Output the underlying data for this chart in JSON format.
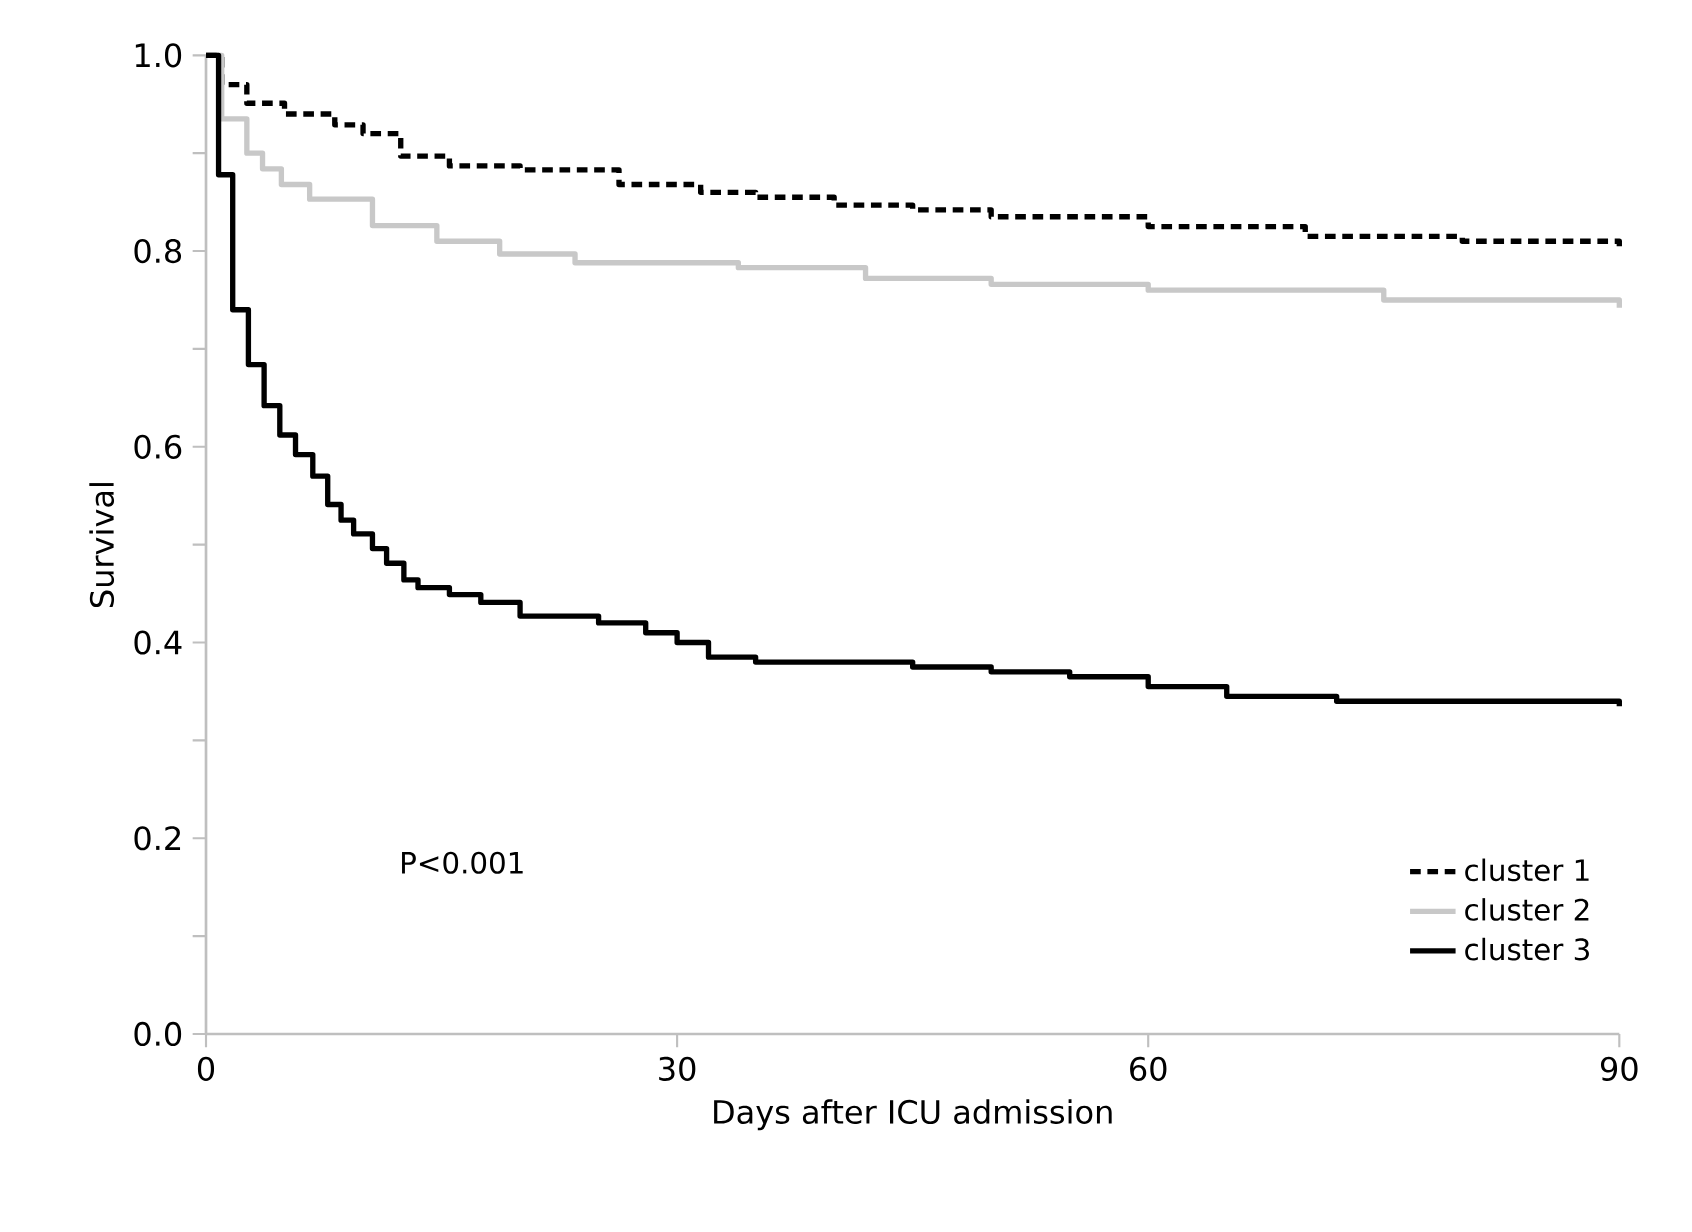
{
  "chart_data": {
    "type": "step",
    "xlabel": "Days after ICU admission",
    "ylabel": "Survival",
    "xlim": [
      0,
      90
    ],
    "ylim": [
      0,
      1
    ],
    "xticks": [
      0,
      30,
      60,
      90
    ],
    "yticks": [
      {
        "value": 0,
        "label": "0.0"
      },
      {
        "value": 0.1,
        "label": null
      },
      {
        "value": 0.2,
        "label": "0.2"
      },
      {
        "value": 0.3,
        "label": null
      },
      {
        "value": 0.4,
        "label": "0.4"
      },
      {
        "value": 0.5,
        "label": null
      },
      {
        "value": 0.6,
        "label": "0.6"
      },
      {
        "value": 0.7,
        "label": null
      },
      {
        "value": 0.8,
        "label": "0.8"
      },
      {
        "value": 0.9,
        "label": null
      },
      {
        "value": 1.0,
        "label": "1.0"
      }
    ],
    "grid": false,
    "legend": "bottom right",
    "marker": "none",
    "annotations": [
      "P<0.001"
    ],
    "series": [
      {
        "name": "cluster 1",
        "color": "#000000",
        "line_style": "dashed",
        "x": [
          0,
          1,
          2.6,
          5,
          8.2,
          10,
          12.4,
          15.5,
          20,
          26.3,
          31.5,
          35,
          40,
          45,
          50,
          60,
          70,
          80,
          90
        ],
        "values": [
          1.0,
          0.97,
          0.951,
          0.94,
          0.929,
          0.92,
          0.897,
          0.887,
          0.883,
          0.868,
          0.86,
          0.855,
          0.847,
          0.842,
          0.835,
          0.825,
          0.815,
          0.81,
          0.805
        ]
      },
      {
        "name": "cluster 2",
        "color": "#c8c8c8",
        "line_style": "solid",
        "x": [
          0,
          1,
          2.6,
          3.6,
          4.8,
          6.6,
          10.6,
          14.7,
          18.7,
          23.5,
          33.9,
          42,
          50,
          60,
          75,
          90
        ],
        "values": [
          1.0,
          0.935,
          0.9,
          0.884,
          0.868,
          0.853,
          0.826,
          0.81,
          0.797,
          0.788,
          0.783,
          0.772,
          0.766,
          0.76,
          0.75,
          0.742
        ]
      },
      {
        "name": "cluster 3",
        "color": "#000000",
        "line_style": "solid",
        "x": [
          0,
          0.8,
          1.7,
          2.7,
          3.7,
          4.7,
          5.7,
          6.8,
          7.75,
          8.6,
          9.4,
          10.6,
          11.5,
          12.6,
          13.5,
          15.5,
          17.5,
          20,
          25,
          28,
          30,
          32,
          35,
          45,
          50,
          55,
          60,
          65,
          72,
          80,
          90
        ],
        "values": [
          1.0,
          0.878,
          0.74,
          0.684,
          0.642,
          0.612,
          0.592,
          0.57,
          0.541,
          0.525,
          0.511,
          0.496,
          0.481,
          0.464,
          0.456,
          0.449,
          0.441,
          0.427,
          0.42,
          0.41,
          0.4,
          0.385,
          0.38,
          0.375,
          0.37,
          0.365,
          0.355,
          0.345,
          0.34,
          0.34,
          0.335
        ]
      }
    ]
  }
}
